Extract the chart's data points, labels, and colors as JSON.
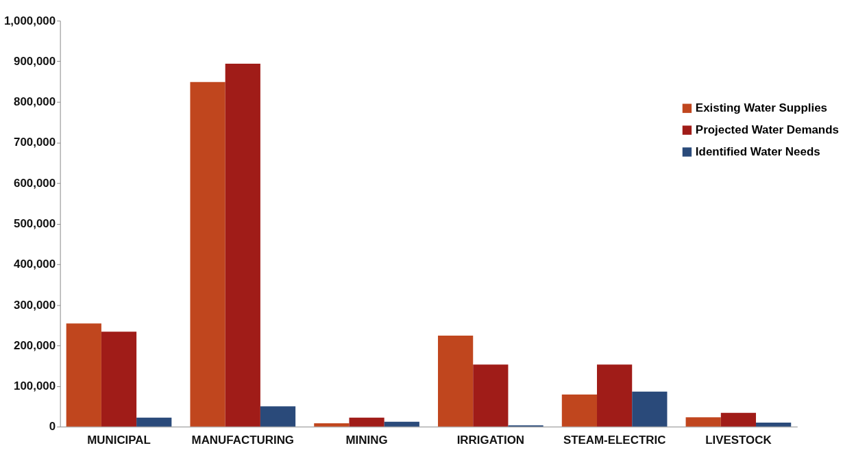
{
  "chart_data": {
    "type": "bar",
    "categories": [
      "MUNICIPAL",
      "MANUFACTURING",
      "MINING",
      "IRRIGATION",
      "STEAM-ELECTRIC",
      "LIVESTOCK"
    ],
    "series": [
      {
        "name": "Existing Water Supplies",
        "color": "#c0461e",
        "values": [
          254000,
          849000,
          8000,
          224000,
          79000,
          23000
        ]
      },
      {
        "name": "Projected Water Demands",
        "color": "#a01c18",
        "values": [
          234000,
          894000,
          22000,
          153000,
          153000,
          34000
        ]
      },
      {
        "name": "Identified Water Needs",
        "color": "#2a4a7a",
        "values": [
          22000,
          50000,
          12000,
          3000,
          86000,
          10000
        ]
      }
    ],
    "ylim": [
      0,
      1000000
    ],
    "yticks": [
      0,
      {
        "value": 100000,
        "label": "100,000"
      },
      {
        "value": 200000,
        "label": "200,000"
      },
      {
        "value": 300000,
        "label": "300,000"
      },
      {
        "value": 400000,
        "label": "400,000"
      },
      {
        "value": 500000,
        "label": "500,000"
      },
      {
        "value": 600000,
        "label": "600,000"
      },
      {
        "value": 700000,
        "label": "700,000"
      },
      {
        "value": 800000,
        "label": "800,000"
      },
      {
        "value": 900000,
        "label": "900,000"
      },
      {
        "value": 1000000,
        "label": "1,000,000"
      }
    ],
    "grid": false,
    "legend": "top right"
  }
}
